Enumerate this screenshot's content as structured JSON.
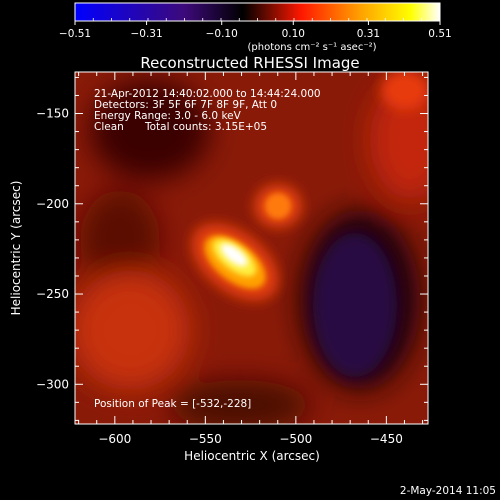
{
  "chart_data": {
    "type": "heatmap",
    "title": "Reconstructed RHESSI Image",
    "xlabel": "Heliocentric X (arcsec)",
    "ylabel": "Heliocentric Y (arcsec)",
    "xlim": [
      -622,
      -427
    ],
    "ylim": [
      -322,
      -127
    ],
    "xticks": [
      -600,
      -550,
      -500,
      -450
    ],
    "yticks": [
      -150,
      -200,
      -250,
      -300
    ],
    "colorbar": {
      "range": [
        -0.51,
        0.51
      ],
      "ticks": [
        "-0.51",
        "-0.31",
        "-0.10",
        "0.10",
        "0.31",
        "0.51"
      ],
      "units_label": "(photons cm⁻² s⁻¹ asec⁻²)",
      "colors": [
        "#0000ff",
        "#3d0a7a",
        "#000000",
        "#ff1800",
        "#ffa000",
        "#ffff00",
        "#ffffff"
      ]
    },
    "annotations": {
      "time_range": "21-Apr-2012 14:40:02.000 to 14:44:24.000",
      "detectors": "Detectors: 3F 5F 6F 7F 8F 9F, Att 0",
      "energy_range": "Energy Range: 3.0 - 6.0 keV",
      "clean": "Clean",
      "total_counts": "Total counts: 3.15E+05",
      "peak": "Position of Peak = [-532,-228]"
    },
    "peak_position": [
      -532,
      -228
    ],
    "sources": [
      {
        "x": -532,
        "y": -230,
        "value": 0.51,
        "elongation": "diagonal"
      },
      {
        "x": -507,
        "y": -202,
        "value": 0.34
      },
      {
        "x": -437,
        "y": -140,
        "value": 0.25
      }
    ],
    "background_level": 0.14,
    "negative_region": {
      "x": -475,
      "y": -270,
      "value": -0.06
    }
  },
  "footer": {
    "date": "2-May-2014 11:05"
  }
}
